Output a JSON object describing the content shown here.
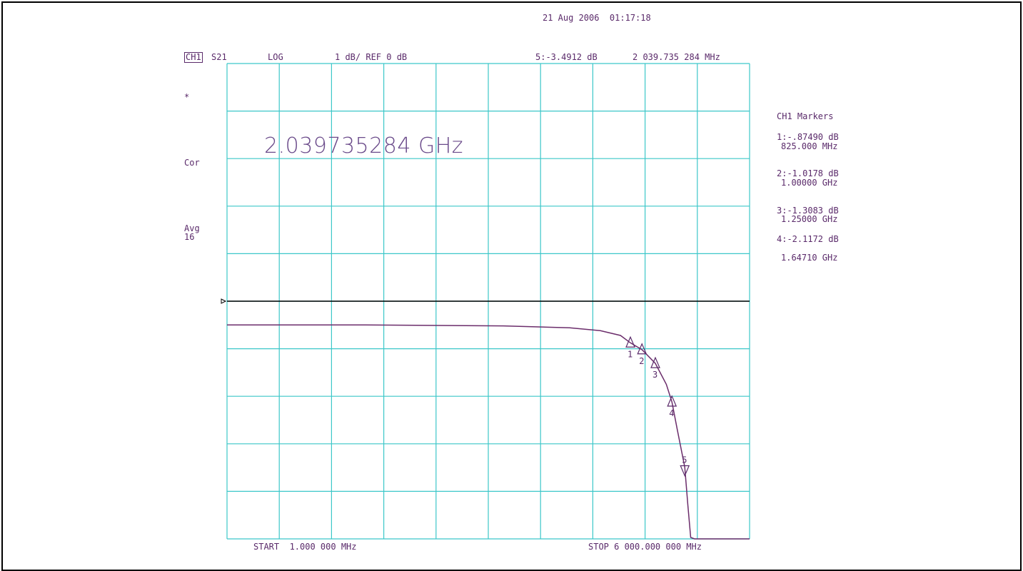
{
  "header": {
    "datetime": "21 Aug 2006  01:17:18",
    "channel": "CH1",
    "param": "S21",
    "format": "LOG",
    "scale": "1 dB/ REF 0 dB",
    "active_marker": "5:-3.4912 dB",
    "active_freq": "2 039.735 284 MHz"
  },
  "left_annotations": {
    "star": "*",
    "cor": "Cor",
    "avg": "Avg",
    "avg_count": "16"
  },
  "marker_readout": "2.039735284 GHz",
  "marker_table": {
    "title": "CH1 Markers",
    "m1_val": "1:-.87490 dB",
    "m1_freq": "825.000 MHz",
    "m2_val": "2:-1.0178 dB",
    "m2_freq": "1.00000 GHz",
    "m3_val": "3:-1.3083 dB",
    "m3_freq": "1.25000 GHz",
    "m4_val": "4:-2.1172 dB",
    "m4_freq": "1.64710 GHz"
  },
  "footer": {
    "start": "START  1.000 000 MHz",
    "stop": "STOP 6 000.000 000 MHz"
  },
  "colors": {
    "grid": "#3cc7c9",
    "trace": "#6b2d6b",
    "text": "#5a2a6a",
    "reference": "#000000"
  },
  "chart_data": {
    "type": "line",
    "x_scale": "log",
    "x_unit": "MHz",
    "xlim": [
      1,
      6000
    ],
    "y_unit": "dB",
    "ylim": [
      -5,
      5
    ],
    "reference_level_db": 0,
    "grid": true,
    "series": [
      {
        "x": [
          1,
          10,
          100,
          300,
          500,
          700,
          825,
          1000,
          1250,
          1500,
          1647.1,
          1800,
          2039.735284,
          2150,
          2250,
          2400,
          6000
        ],
        "y": [
          -0.5,
          -0.5,
          -0.52,
          -0.56,
          -0.62,
          -0.72,
          -0.875,
          -1.018,
          -1.308,
          -1.75,
          -2.117,
          -2.7,
          -3.491,
          -4.3,
          -4.97,
          -5.0,
          -5.0
        ]
      }
    ],
    "markers": [
      {
        "label": "1",
        "x": 825,
        "y": -0.8749,
        "dir": "up"
      },
      {
        "label": "2",
        "x": 1000,
        "y": -1.0178,
        "dir": "up"
      },
      {
        "label": "3",
        "x": 1250,
        "y": -1.3083,
        "dir": "up"
      },
      {
        "label": "4",
        "x": 1647.1,
        "y": -2.1172,
        "dir": "up"
      },
      {
        "label": "5",
        "x": 2039.735284,
        "y": -3.4912,
        "dir": "down"
      }
    ]
  }
}
